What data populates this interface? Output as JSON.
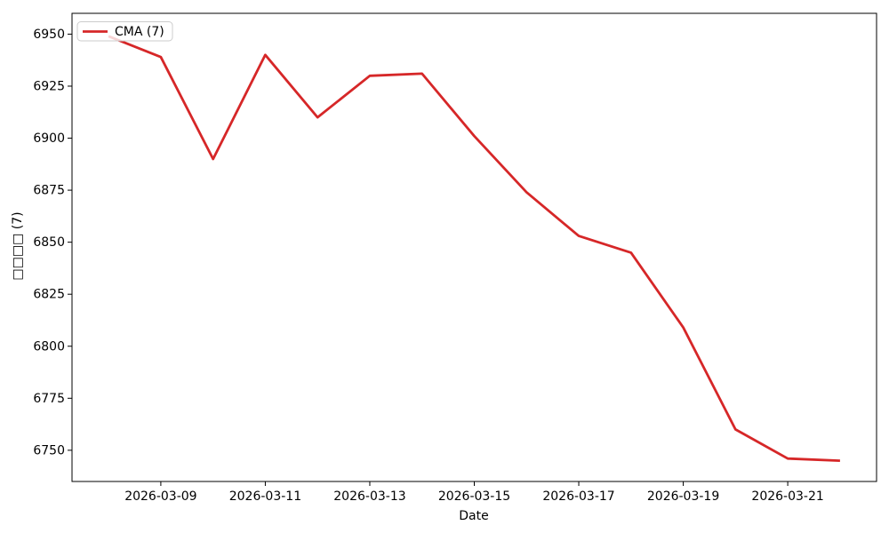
{
  "figure": {
    "background": "#ffffff",
    "axis_color": "#000000",
    "legend_border_color": "#cccccc",
    "legend_bg_color": "#ffffff"
  },
  "chart_data": {
    "type": "line",
    "title": "",
    "xlabel": "Date",
    "ylabel": "□□□□ (7)",
    "legend_label": "CMA (7)",
    "legend_position": "upper left",
    "grid": false,
    "line_color": "#d62728",
    "x": [
      "2026-03-08",
      "2026-03-09",
      "2026-03-10",
      "2026-03-11",
      "2026-03-12",
      "2026-03-13",
      "2026-03-14",
      "2026-03-15",
      "2026-03-16",
      "2026-03-17",
      "2026-03-18",
      "2026-03-19",
      "2026-03-20",
      "2026-03-21",
      "2026-03-22"
    ],
    "series": [
      {
        "name": "CMA (7)",
        "color": "#d62728",
        "values": [
          6949,
          6939,
          6890,
          6940,
          6910,
          6930,
          6931,
          6901,
          6874,
          6853,
          6845,
          6809,
          6760,
          6746,
          6745
        ]
      }
    ],
    "x_tick_labels": [
      "2026-03-09",
      "2026-03-11",
      "2026-03-13",
      "2026-03-15",
      "2026-03-17",
      "2026-03-19",
      "2026-03-21"
    ],
    "x_tick_indices": [
      1,
      3,
      5,
      7,
      9,
      11,
      13
    ],
    "y_ticks": [
      6750,
      6775,
      6800,
      6825,
      6850,
      6875,
      6900,
      6925,
      6950
    ],
    "xlim": [
      -0.7,
      14.7
    ],
    "ylim": [
      6735,
      6960
    ]
  }
}
